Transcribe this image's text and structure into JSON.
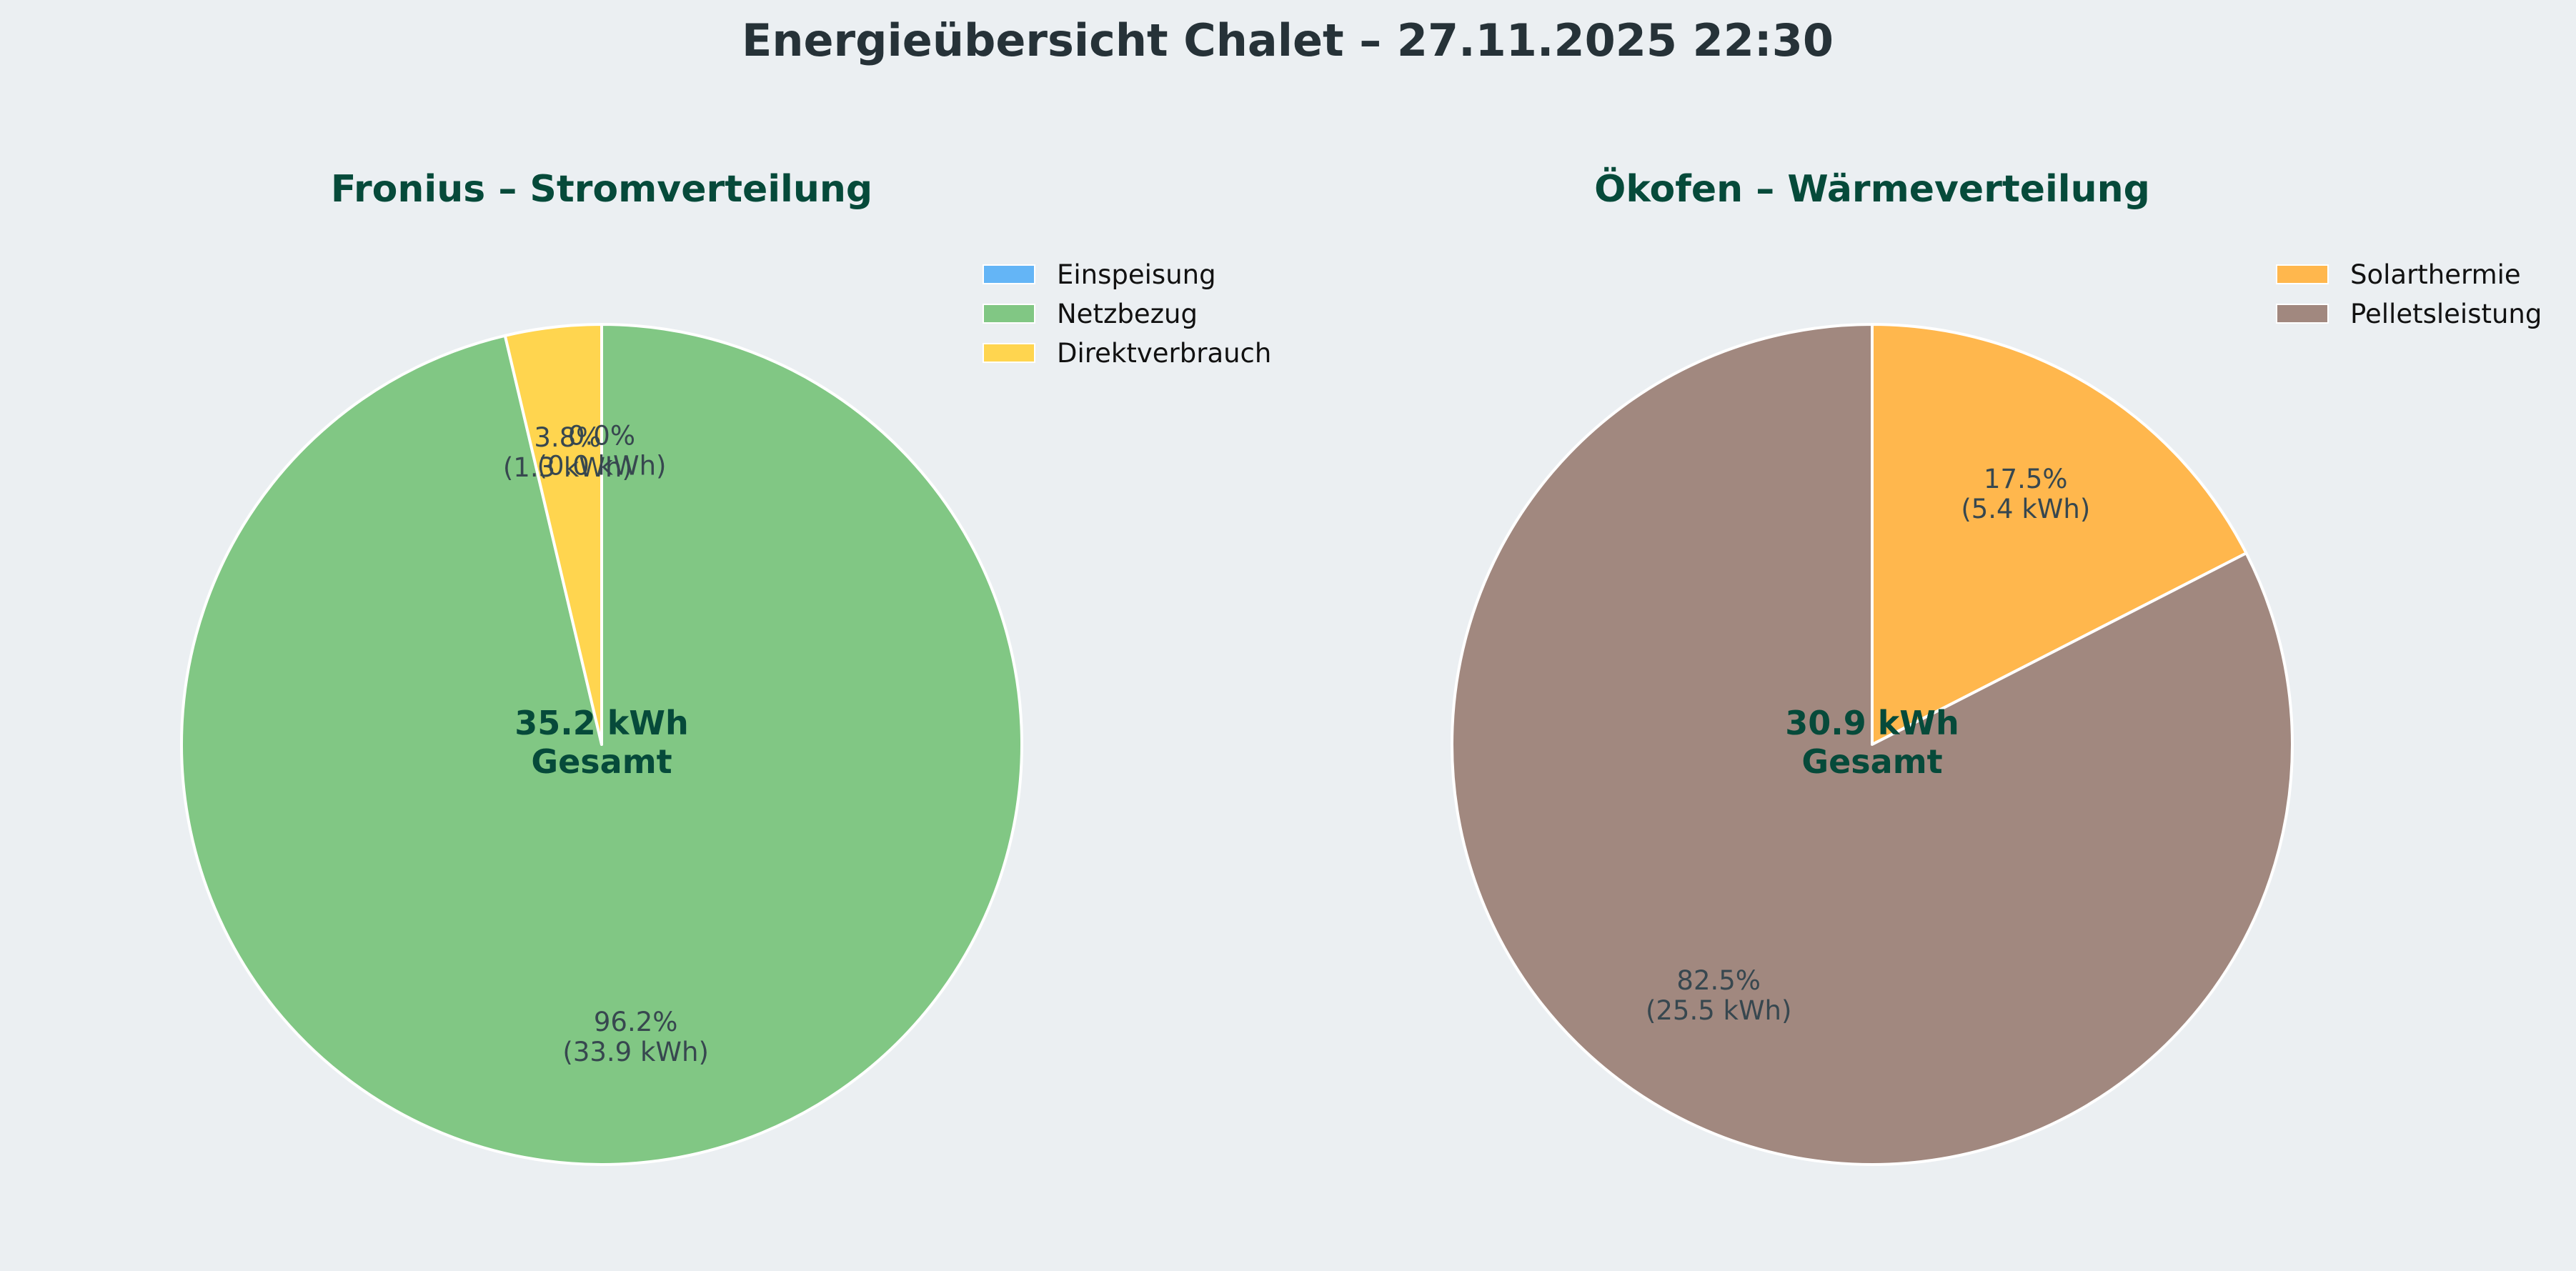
{
  "title": "Energieübersicht Chalet – 27.11.2025 22:30",
  "chart_data": [
    {
      "type": "pie",
      "title": "Fronius – Stromverteilung",
      "unit": "kWh",
      "start_angle_deg": 90,
      "direction": "clockwise",
      "legend_placement": "top-right",
      "center_label": [
        "35.2 kWh",
        "Gesamt"
      ],
      "slices": [
        {
          "name": "Einspeisung",
          "value": 0.0,
          "percent_label": "0.0%",
          "value_label": "(0.0 kWh)",
          "color": "#64b5f6"
        },
        {
          "name": "Netzbezug",
          "value": 33.9,
          "percent_label": "96.2%",
          "value_label": "(33.9 kWh)",
          "color": "#81c784"
        },
        {
          "name": "Direktverbrauch",
          "value": 1.3,
          "percent_label": "3.8%",
          "value_label": "(1.3 kWh)",
          "color": "#ffd54f"
        }
      ]
    },
    {
      "type": "pie",
      "title": "Ökofen – Wärmeverteilung",
      "unit": "kWh",
      "start_angle_deg": 90,
      "direction": "clockwise",
      "legend_placement": "top-right",
      "center_label": [
        "30.9 kWh",
        "Gesamt"
      ],
      "slices": [
        {
          "name": "Solarthermie",
          "value": 5.4,
          "percent_label": "17.5%",
          "value_label": "(5.4 kWh)",
          "color": "#ffb74d"
        },
        {
          "name": "Pelletsleistung",
          "value": 25.5,
          "percent_label": "82.5%",
          "value_label": "(25.5 kWh)",
          "color": "#a1887f"
        }
      ]
    }
  ]
}
